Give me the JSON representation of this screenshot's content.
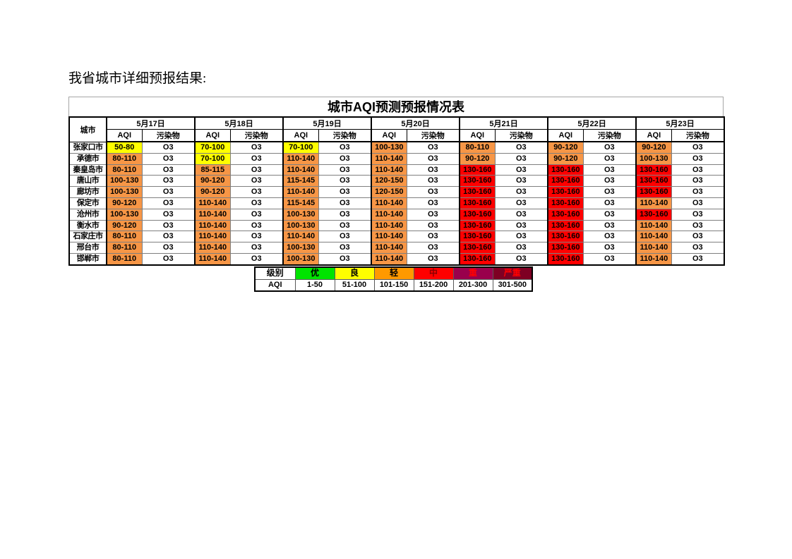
{
  "page": {
    "heading": "我省城市详细预报结果:"
  },
  "colors": {
    "yellow": "#FFFF00",
    "orange": "#F79646",
    "red": "#FF0000"
  },
  "table": {
    "title": "城市AQI预测预报情况表",
    "city_header": "城市",
    "sub_headers": {
      "aqi": "AQI",
      "pollutant": "污染物"
    },
    "dates": [
      "5月17日",
      "5月18日",
      "5月19日",
      "5月20日",
      "5月21日",
      "5月22日",
      "5月23日"
    ],
    "rows": [
      {
        "city": "张家口市",
        "cells": [
          {
            "aqi": "50-80",
            "level": "yellow",
            "pollutant": "O3"
          },
          {
            "aqi": "70-100",
            "level": "yellow",
            "pollutant": "O3"
          },
          {
            "aqi": "70-100",
            "level": "yellow",
            "pollutant": "O3"
          },
          {
            "aqi": "100-130",
            "level": "orange",
            "pollutant": "O3"
          },
          {
            "aqi": "80-110",
            "level": "orange",
            "pollutant": "O3"
          },
          {
            "aqi": "90-120",
            "level": "orange",
            "pollutant": "O3"
          },
          {
            "aqi": "90-120",
            "level": "orange",
            "pollutant": "O3"
          }
        ]
      },
      {
        "city": "承德市",
        "cells": [
          {
            "aqi": "80-110",
            "level": "orange",
            "pollutant": "O3"
          },
          {
            "aqi": "70-100",
            "level": "yellow",
            "pollutant": "O3"
          },
          {
            "aqi": "110-140",
            "level": "orange",
            "pollutant": "O3"
          },
          {
            "aqi": "110-140",
            "level": "orange",
            "pollutant": "O3"
          },
          {
            "aqi": "90-120",
            "level": "orange",
            "pollutant": "O3"
          },
          {
            "aqi": "90-120",
            "level": "orange",
            "pollutant": "O3"
          },
          {
            "aqi": "100-130",
            "level": "orange",
            "pollutant": "O3"
          }
        ]
      },
      {
        "city": "秦皇岛市",
        "cells": [
          {
            "aqi": "80-110",
            "level": "orange",
            "pollutant": "O3"
          },
          {
            "aqi": "85-115",
            "level": "orange",
            "pollutant": "O3"
          },
          {
            "aqi": "110-140",
            "level": "orange",
            "pollutant": "O3"
          },
          {
            "aqi": "110-140",
            "level": "orange",
            "pollutant": "O3"
          },
          {
            "aqi": "130-160",
            "level": "red",
            "pollutant": "O3"
          },
          {
            "aqi": "130-160",
            "level": "red",
            "pollutant": "O3"
          },
          {
            "aqi": "130-160",
            "level": "red",
            "pollutant": "O3"
          }
        ]
      },
      {
        "city": "唐山市",
        "cells": [
          {
            "aqi": "100-130",
            "level": "orange",
            "pollutant": "O3"
          },
          {
            "aqi": "90-120",
            "level": "orange",
            "pollutant": "O3"
          },
          {
            "aqi": "115-145",
            "level": "orange",
            "pollutant": "O3"
          },
          {
            "aqi": "120-150",
            "level": "orange",
            "pollutant": "O3"
          },
          {
            "aqi": "130-160",
            "level": "red",
            "pollutant": "O3"
          },
          {
            "aqi": "130-160",
            "level": "red",
            "pollutant": "O3"
          },
          {
            "aqi": "130-160",
            "level": "red",
            "pollutant": "O3"
          }
        ]
      },
      {
        "city": "廊坊市",
        "cells": [
          {
            "aqi": "100-130",
            "level": "orange",
            "pollutant": "O3"
          },
          {
            "aqi": "90-120",
            "level": "orange",
            "pollutant": "O3"
          },
          {
            "aqi": "110-140",
            "level": "orange",
            "pollutant": "O3"
          },
          {
            "aqi": "120-150",
            "level": "orange",
            "pollutant": "O3"
          },
          {
            "aqi": "130-160",
            "level": "red",
            "pollutant": "O3"
          },
          {
            "aqi": "130-160",
            "level": "red",
            "pollutant": "O3"
          },
          {
            "aqi": "130-160",
            "level": "red",
            "pollutant": "O3"
          }
        ]
      },
      {
        "city": "保定市",
        "cells": [
          {
            "aqi": "90-120",
            "level": "orange",
            "pollutant": "O3"
          },
          {
            "aqi": "110-140",
            "level": "orange",
            "pollutant": "O3"
          },
          {
            "aqi": "115-145",
            "level": "orange",
            "pollutant": "O3"
          },
          {
            "aqi": "110-140",
            "level": "orange",
            "pollutant": "O3"
          },
          {
            "aqi": "130-160",
            "level": "red",
            "pollutant": "O3"
          },
          {
            "aqi": "130-160",
            "level": "red",
            "pollutant": "O3"
          },
          {
            "aqi": "110-140",
            "level": "orange",
            "pollutant": "O3"
          }
        ]
      },
      {
        "city": "沧州市",
        "cells": [
          {
            "aqi": "100-130",
            "level": "orange",
            "pollutant": "O3"
          },
          {
            "aqi": "110-140",
            "level": "orange",
            "pollutant": "O3"
          },
          {
            "aqi": "100-130",
            "level": "orange",
            "pollutant": "O3"
          },
          {
            "aqi": "110-140",
            "level": "orange",
            "pollutant": "O3"
          },
          {
            "aqi": "130-160",
            "level": "red",
            "pollutant": "O3"
          },
          {
            "aqi": "130-160",
            "level": "red",
            "pollutant": "O3"
          },
          {
            "aqi": "130-160",
            "level": "red",
            "pollutant": "O3"
          }
        ]
      },
      {
        "city": "衡水市",
        "cells": [
          {
            "aqi": "90-120",
            "level": "orange",
            "pollutant": "O3"
          },
          {
            "aqi": "110-140",
            "level": "orange",
            "pollutant": "O3"
          },
          {
            "aqi": "100-130",
            "level": "orange",
            "pollutant": "O3"
          },
          {
            "aqi": "110-140",
            "level": "orange",
            "pollutant": "O3"
          },
          {
            "aqi": "130-160",
            "level": "red",
            "pollutant": "O3"
          },
          {
            "aqi": "130-160",
            "level": "red",
            "pollutant": "O3"
          },
          {
            "aqi": "110-140",
            "level": "orange",
            "pollutant": "O3"
          }
        ]
      },
      {
        "city": "石家庄市",
        "cells": [
          {
            "aqi": "80-110",
            "level": "orange",
            "pollutant": "O3"
          },
          {
            "aqi": "110-140",
            "level": "orange",
            "pollutant": "O3"
          },
          {
            "aqi": "110-140",
            "level": "orange",
            "pollutant": "O3"
          },
          {
            "aqi": "110-140",
            "level": "orange",
            "pollutant": "O3"
          },
          {
            "aqi": "130-160",
            "level": "red",
            "pollutant": "O3"
          },
          {
            "aqi": "130-160",
            "level": "red",
            "pollutant": "O3"
          },
          {
            "aqi": "110-140",
            "level": "orange",
            "pollutant": "O3"
          }
        ]
      },
      {
        "city": "邢台市",
        "cells": [
          {
            "aqi": "80-110",
            "level": "orange",
            "pollutant": "O3"
          },
          {
            "aqi": "110-140",
            "level": "orange",
            "pollutant": "O3"
          },
          {
            "aqi": "100-130",
            "level": "orange",
            "pollutant": "O3"
          },
          {
            "aqi": "110-140",
            "level": "orange",
            "pollutant": "O3"
          },
          {
            "aqi": "130-160",
            "level": "red",
            "pollutant": "O3"
          },
          {
            "aqi": "130-160",
            "level": "red",
            "pollutant": "O3"
          },
          {
            "aqi": "110-140",
            "level": "orange",
            "pollutant": "O3"
          }
        ]
      },
      {
        "city": "邯郸市",
        "cells": [
          {
            "aqi": "80-110",
            "level": "orange",
            "pollutant": "O3"
          },
          {
            "aqi": "110-140",
            "level": "orange",
            "pollutant": "O3"
          },
          {
            "aqi": "100-130",
            "level": "orange",
            "pollutant": "O3"
          },
          {
            "aqi": "110-140",
            "level": "orange",
            "pollutant": "O3"
          },
          {
            "aqi": "130-160",
            "level": "red",
            "pollutant": "O3"
          },
          {
            "aqi": "130-160",
            "level": "red",
            "pollutant": "O3"
          },
          {
            "aqi": "110-140",
            "level": "orange",
            "pollutant": "O3"
          }
        ]
      }
    ]
  },
  "legend": {
    "header_label": "级别",
    "aqi_label": "AQI",
    "levels": [
      {
        "label": "优",
        "range": "1-50",
        "bg": "#00E400",
        "text": "#000000"
      },
      {
        "label": "良",
        "range": "51-100",
        "bg": "#FFFF00",
        "text": "#000000"
      },
      {
        "label": "轻",
        "range": "101-150",
        "bg": "#FF9900",
        "text": "#000000"
      },
      {
        "label": "中",
        "range": "151-200",
        "bg": "#FF0000",
        "text": "#8B0000"
      },
      {
        "label": "重",
        "range": "201-300",
        "bg": "#99004C",
        "text": "#FF0000"
      },
      {
        "label": "严重",
        "range": "301-500",
        "bg": "#7E0023",
        "text": "#FF0000"
      }
    ]
  }
}
